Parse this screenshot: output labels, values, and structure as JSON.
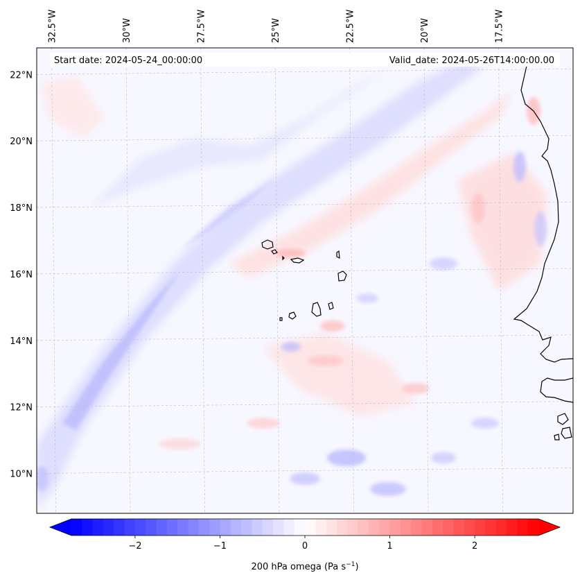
{
  "header": {
    "start_date": "Start date: 2024-05-24_00:00:00",
    "valid_date": "Valid_date: 2024-05-26T14:00:00.00"
  },
  "map": {
    "projection": "lat-lon",
    "lon_range": [
      -33.0,
      -15.0
    ],
    "lat_range": [
      8.8,
      22.8
    ],
    "field": "200 hPa omega",
    "lon_ticks": [
      {
        "value": -32.5,
        "label": "32.5°W"
      },
      {
        "value": -30.0,
        "label": "30°W"
      },
      {
        "value": -27.5,
        "label": "27.5°W"
      },
      {
        "value": -25.0,
        "label": "25°W"
      },
      {
        "value": -22.5,
        "label": "22.5°W"
      },
      {
        "value": -20.0,
        "label": "20°W"
      },
      {
        "value": -17.5,
        "label": "17.5°W"
      }
    ],
    "lat_ticks": [
      {
        "value": 22,
        "label": "22°N"
      },
      {
        "value": 20,
        "label": "20°N"
      },
      {
        "value": 18,
        "label": "18°N"
      },
      {
        "value": 16,
        "label": "16°N"
      },
      {
        "value": 14,
        "label": "14°N"
      },
      {
        "value": 12,
        "label": "12°N"
      },
      {
        "value": 10,
        "label": "10°N"
      }
    ],
    "gridlines": true,
    "features": [
      {
        "name": "cape-verde-islands",
        "type": "island-group"
      },
      {
        "name": "west-africa-coastline",
        "type": "coastline"
      }
    ]
  },
  "colorbar": {
    "label_main": "200 hPa omega (Pa s",
    "label_sup": "−1",
    "label_end": ")",
    "range": [
      -2.75,
      2.75
    ],
    "ticks": [
      {
        "value": -2,
        "label": "−2"
      },
      {
        "value": -1,
        "label": "−1"
      },
      {
        "value": 0,
        "label": "0"
      },
      {
        "value": 1,
        "label": "1"
      },
      {
        "value": 2,
        "label": "2"
      }
    ],
    "colormap": "bwr",
    "color_low": "#0000ff",
    "color_mid": "#ffffff",
    "color_high": "#ff0000",
    "extend": "both"
  }
}
